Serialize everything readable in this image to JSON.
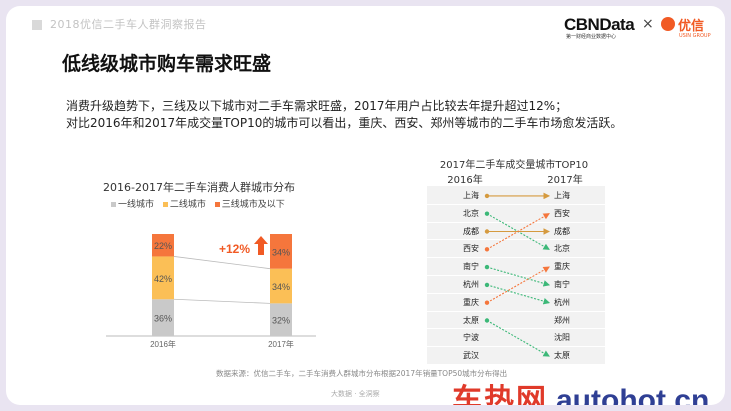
{
  "header": {
    "title": "2018优信二手车人群洞察报告"
  },
  "logos": {
    "cbn": "CBNData",
    "cbn_sub": "第一财经商业数据中心",
    "x": "×",
    "youxin": "优信",
    "youxin_sub": "USIN GROUP"
  },
  "page_title": "低线级城市购车需求旺盛",
  "description": [
    "消费升级趋势下，三线及以下城市对二手车需求旺盛，2017年用户占比较去年提升超过12%；",
    "对比2016年和2017年成交量TOP10的城市可以看出，重庆、西安、郑州等城市的二手车市场愈发活跃。"
  ],
  "colors": {
    "tier1": "#c9c9c9",
    "tier2": "#fbbf56",
    "tier3": "#f5763c",
    "accent": "#f15a24",
    "arrow_gray": "#d59a3f",
    "arrow_green": "#3cb878",
    "arrow_orange": "#f5763c"
  },
  "chart_data": {
    "type": "bar",
    "title": "2016-2017年二手车消费人群城市分布",
    "categories": [
      "2016年",
      "2017年"
    ],
    "series": [
      {
        "name": "一线城市",
        "values": [
          36,
          32
        ]
      },
      {
        "name": "二线城市",
        "values": [
          42,
          34
        ]
      },
      {
        "name": "三线城市及以下",
        "values": [
          22,
          34
        ]
      }
    ],
    "annotation": "+12%",
    "ylim": [
      0,
      100
    ]
  },
  "top10": {
    "title": "2017年二手车成交量城市TOP10",
    "col_2016": "2016年",
    "col_2017": "2017年",
    "cities_2016": [
      "上海",
      "北京",
      "成都",
      "西安",
      "南宁",
      "杭州",
      "重庆",
      "太原",
      "宁波",
      "武汉"
    ],
    "cities_2017": [
      "上海",
      "西安",
      "成都",
      "北京",
      "重庆",
      "南宁",
      "杭州",
      "郑州",
      "沈阳",
      "太原"
    ],
    "moves": [
      {
        "from": 0,
        "to": 0,
        "kind": "same"
      },
      {
        "from": 1,
        "to": 3,
        "kind": "down"
      },
      {
        "from": 2,
        "to": 2,
        "kind": "same"
      },
      {
        "from": 3,
        "to": 1,
        "kind": "up"
      },
      {
        "from": 4,
        "to": 5,
        "kind": "down"
      },
      {
        "from": 5,
        "to": 6,
        "kind": "down"
      },
      {
        "from": 6,
        "to": 4,
        "kind": "up"
      },
      {
        "from": 7,
        "to": 9,
        "kind": "down"
      }
    ]
  },
  "source": "数据来源：优信二手车，二手车消费人群城市分布根据2017年销量TOP50城市分布得出",
  "footer": "大数据 · 全洞察",
  "watermark": {
    "cn": "车热网",
    "en": "autohot.cn"
  }
}
